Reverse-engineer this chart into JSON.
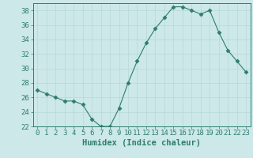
{
  "x": [
    0,
    1,
    2,
    3,
    4,
    5,
    6,
    7,
    8,
    9,
    10,
    11,
    12,
    13,
    14,
    15,
    16,
    17,
    18,
    19,
    20,
    21,
    22,
    23
  ],
  "y": [
    27.0,
    26.5,
    26.0,
    25.5,
    25.5,
    25.0,
    23.0,
    22.0,
    22.0,
    24.5,
    28.0,
    31.0,
    33.5,
    35.5,
    37.0,
    38.5,
    38.5,
    38.0,
    37.5,
    38.0,
    35.0,
    32.5,
    31.0,
    29.5
  ],
  "line_color": "#2e7d6e",
  "marker": "D",
  "marker_size": 2.5,
  "xlabel": "Humidex (Indice chaleur)",
  "ylim": [
    22,
    39
  ],
  "xlim": [
    -0.5,
    23.5
  ],
  "yticks": [
    22,
    24,
    26,
    28,
    30,
    32,
    34,
    36,
    38
  ],
  "xticks": [
    0,
    1,
    2,
    3,
    4,
    5,
    6,
    7,
    8,
    9,
    10,
    11,
    12,
    13,
    14,
    15,
    16,
    17,
    18,
    19,
    20,
    21,
    22,
    23
  ],
  "background_color": "#cce8e8",
  "grid_color": "#b8d8d8",
  "font_size": 6.5,
  "xlabel_fontsize": 7.5
}
